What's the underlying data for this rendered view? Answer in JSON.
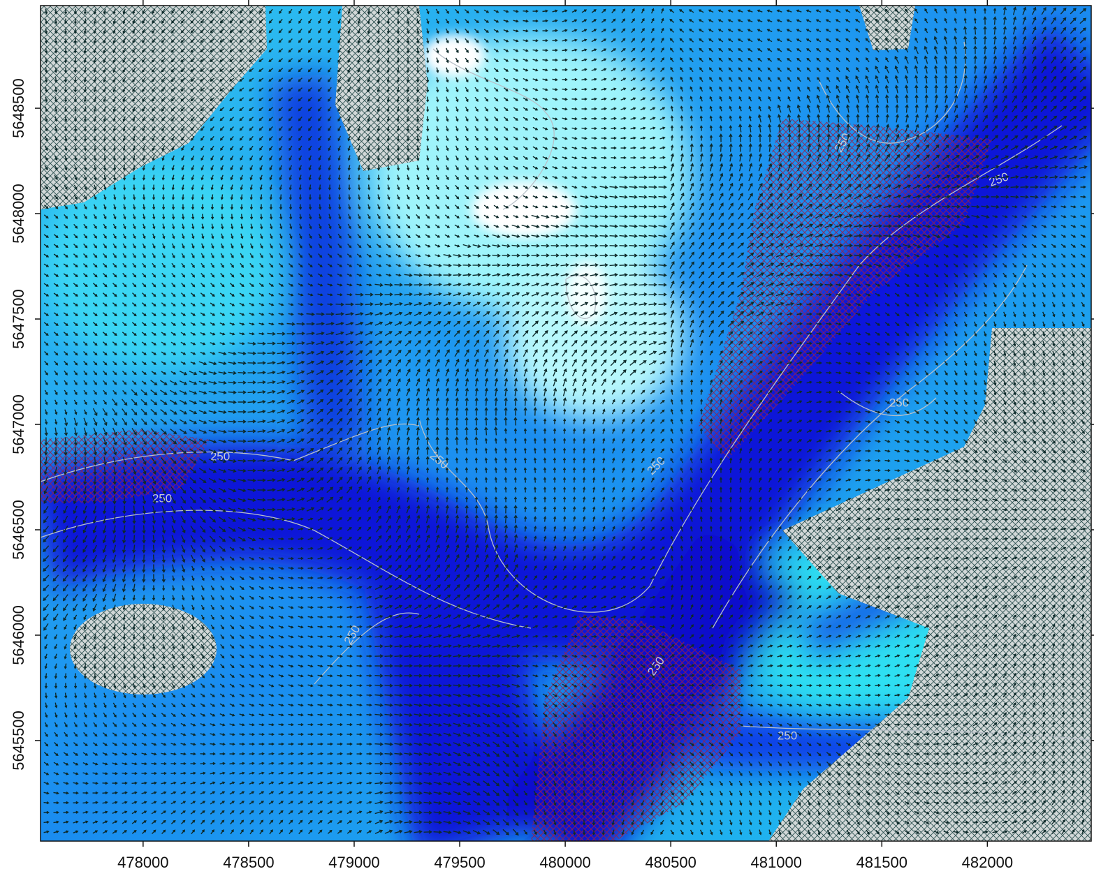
{
  "chart_data": {
    "type": "vector-field",
    "xlim": [
      477514,
      482492
    ],
    "ylim": [
      5645023,
      5648987
    ],
    "xticks": [
      478000,
      478500,
      479000,
      479500,
      480000,
      480500,
      481000,
      481500,
      482000
    ],
    "yticks": [
      5645500,
      5646000,
      5646500,
      5647000,
      5647500,
      5648000,
      5648500
    ],
    "contour_labels": [
      "250",
      "250",
      "250",
      "250",
      "250",
      "250",
      "250",
      "250",
      "250",
      "250"
    ]
  }
}
